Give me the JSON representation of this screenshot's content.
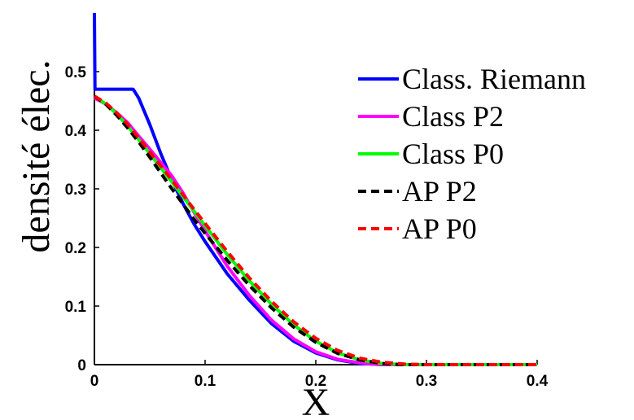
{
  "chart_data": {
    "type": "line",
    "title": "",
    "xlabel": "X",
    "ylabel": "densité élec.",
    "xlim": [
      0,
      0.4
    ],
    "ylim": [
      0,
      0.6
    ],
    "xticks": [
      "0",
      "0.1",
      "0.2",
      "0.3",
      "0.4"
    ],
    "yticks": [
      "0",
      "0.1",
      "0.2",
      "0.3",
      "0.4",
      "0.5"
    ],
    "grid": false,
    "legend_position": "top-right",
    "series": [
      {
        "name": "Class. Riemann",
        "color": "#0000ff",
        "dash": "solid",
        "x": [
          0,
          0.0005,
          0.002,
          0.01,
          0.02,
          0.03,
          0.035,
          0.04,
          0.05,
          0.06,
          0.07,
          0.08,
          0.09,
          0.1,
          0.12,
          0.14,
          0.16,
          0.18,
          0.2,
          0.22,
          0.24,
          0.25,
          0.26,
          0.28,
          0.3,
          0.35,
          0.4
        ],
        "y": [
          0.6,
          0.47,
          0.47,
          0.47,
          0.47,
          0.47,
          0.47,
          0.455,
          0.41,
          0.36,
          0.315,
          0.275,
          0.24,
          0.21,
          0.155,
          0.11,
          0.07,
          0.04,
          0.02,
          0.008,
          0.002,
          0.001,
          0.0,
          0.0,
          0.0,
          0.0,
          0.0
        ]
      },
      {
        "name": "Class P2",
        "color": "#ff00ff",
        "dash": "solid",
        "x": [
          0,
          0.01,
          0.02,
          0.03,
          0.04,
          0.05,
          0.06,
          0.07,
          0.08,
          0.09,
          0.1,
          0.12,
          0.14,
          0.16,
          0.18,
          0.2,
          0.22,
          0.24,
          0.25,
          0.26,
          0.28,
          0.3,
          0.35,
          0.4
        ],
        "y": [
          0.455,
          0.445,
          0.43,
          0.413,
          0.39,
          0.368,
          0.345,
          0.322,
          0.293,
          0.26,
          0.228,
          0.168,
          0.118,
          0.076,
          0.044,
          0.022,
          0.009,
          0.003,
          0.001,
          0.0,
          0.0,
          0.0,
          0.0,
          0.0
        ]
      },
      {
        "name": "Class P0",
        "color": "#00ff00",
        "dash": "solid",
        "x": [
          0,
          0.01,
          0.02,
          0.03,
          0.04,
          0.05,
          0.06,
          0.07,
          0.08,
          0.09,
          0.1,
          0.12,
          0.14,
          0.16,
          0.18,
          0.2,
          0.22,
          0.24,
          0.26,
          0.28,
          0.3,
          0.35,
          0.4
        ],
        "y": [
          0.458,
          0.445,
          0.428,
          0.407,
          0.384,
          0.36,
          0.336,
          0.312,
          0.287,
          0.262,
          0.237,
          0.188,
          0.143,
          0.103,
          0.068,
          0.04,
          0.02,
          0.008,
          0.002,
          0.0,
          0.0,
          0.0,
          0.0
        ]
      },
      {
        "name": "AP P2",
        "color": "#000000",
        "dash": "dashed",
        "x": [
          0,
          0.01,
          0.02,
          0.03,
          0.04,
          0.05,
          0.06,
          0.07,
          0.08,
          0.09,
          0.1,
          0.12,
          0.14,
          0.16,
          0.18,
          0.2,
          0.22,
          0.24,
          0.26,
          0.28,
          0.3,
          0.35,
          0.4
        ],
        "y": [
          0.458,
          0.445,
          0.426,
          0.404,
          0.38,
          0.354,
          0.327,
          0.3,
          0.274,
          0.248,
          0.224,
          0.178,
          0.135,
          0.097,
          0.064,
          0.038,
          0.019,
          0.008,
          0.002,
          0.0,
          0.0,
          0.0,
          0.0
        ]
      },
      {
        "name": "AP P0",
        "color": "#ff0000",
        "dash": "dashed",
        "x": [
          0,
          0.01,
          0.02,
          0.03,
          0.04,
          0.05,
          0.06,
          0.07,
          0.08,
          0.09,
          0.1,
          0.12,
          0.14,
          0.16,
          0.18,
          0.2,
          0.22,
          0.24,
          0.26,
          0.28,
          0.3,
          0.35,
          0.4
        ],
        "y": [
          0.458,
          0.447,
          0.43,
          0.41,
          0.387,
          0.363,
          0.339,
          0.315,
          0.29,
          0.265,
          0.241,
          0.193,
          0.148,
          0.108,
          0.073,
          0.045,
          0.024,
          0.011,
          0.004,
          0.001,
          0.0,
          0.0,
          0.0
        ]
      }
    ]
  }
}
